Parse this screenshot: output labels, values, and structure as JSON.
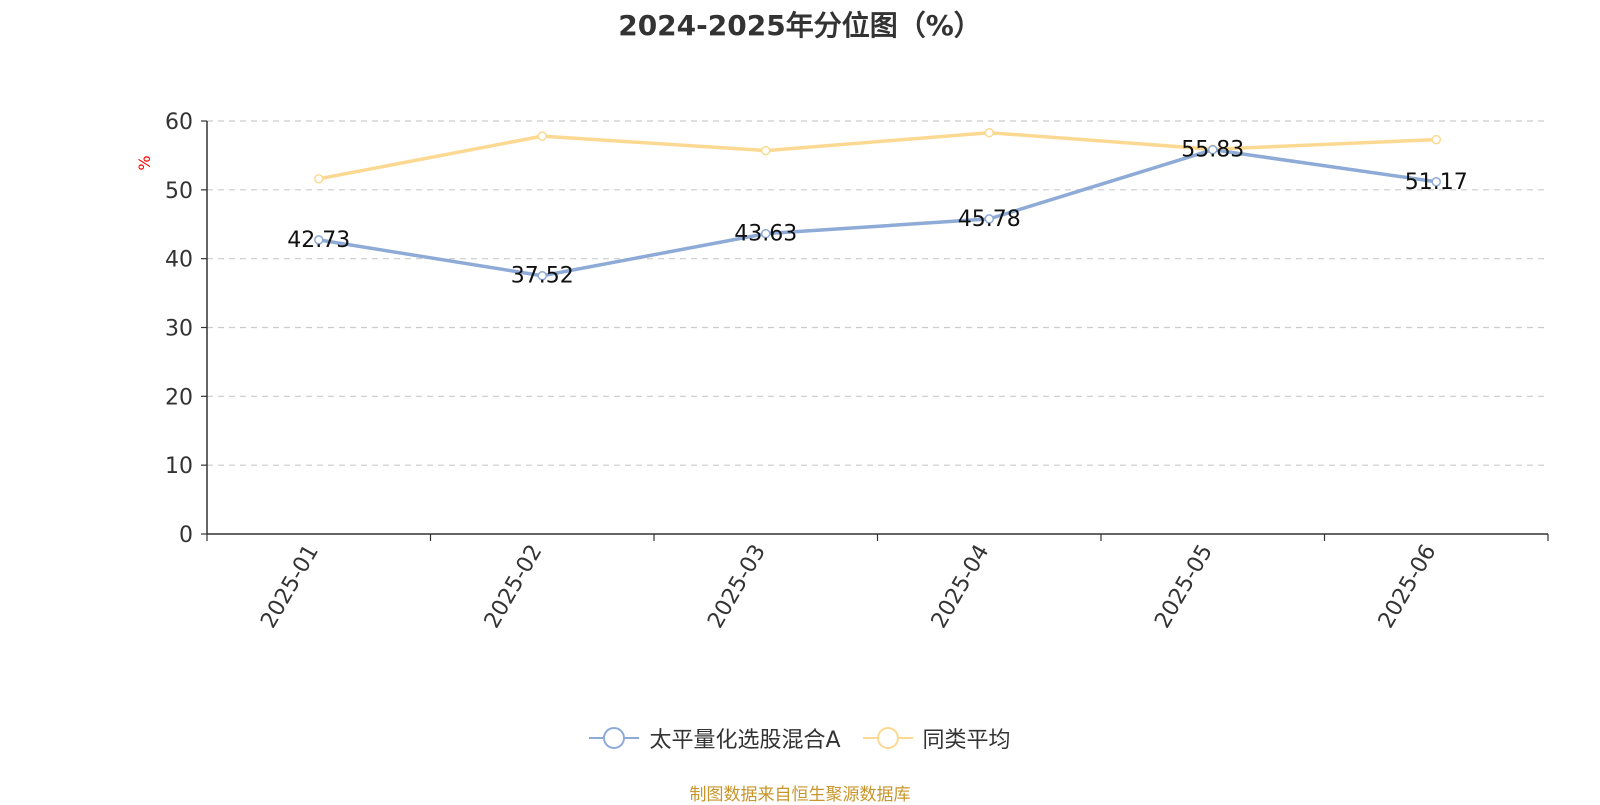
{
  "chart_data": {
    "type": "line",
    "title": "2024-2025年分位图（%）",
    "ylabel": "%",
    "ylim": [
      0,
      60
    ],
    "yticks": [
      0,
      10,
      20,
      30,
      40,
      50,
      60
    ],
    "grid": true,
    "legend_position": "bottom",
    "categories": [
      "2025-01",
      "2025-02",
      "2025-03",
      "2025-04",
      "2025-05",
      "2025-06"
    ],
    "series": [
      {
        "name": "太平量化选股混合A",
        "values": [
          42.73,
          37.52,
          43.63,
          45.78,
          55.83,
          51.17
        ],
        "color": "#8eaad6",
        "data_labels": [
          "42.73",
          "37.52",
          "43.63",
          "45.78",
          "55.83",
          "51.17"
        ]
      },
      {
        "name": "同类平均",
        "values": [
          51.6,
          57.8,
          55.7,
          58.3,
          55.9,
          57.3
        ],
        "color": "#fcd992"
      }
    ]
  },
  "footer": {
    "source": "制图数据来自恒生聚源数据库"
  }
}
